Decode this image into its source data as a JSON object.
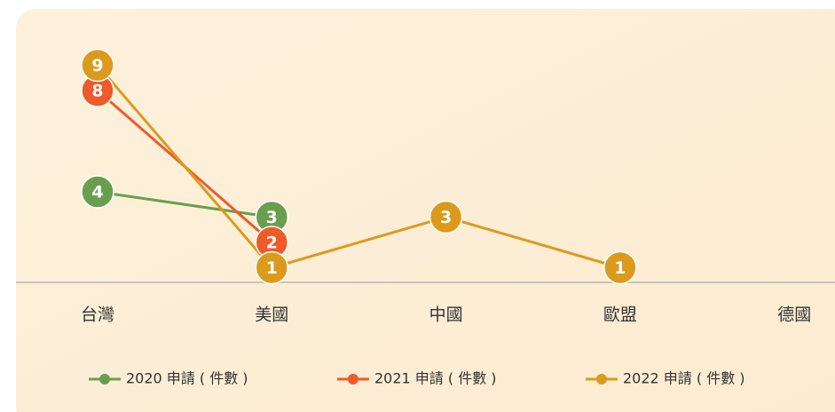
{
  "chart_data": {
    "type": "line",
    "categories": [
      "台灣",
      "美國",
      "中國",
      "歐盟",
      "德國"
    ],
    "series": [
      {
        "name": "2020 申請 ( 件數 )",
        "color": "#6a9e4f",
        "values": [
          4,
          3,
          null,
          null,
          null
        ]
      },
      {
        "name": "2021 申請 ( 件數 )",
        "color": "#ee5a2a",
        "values": [
          8,
          2,
          null,
          null,
          null
        ]
      },
      {
        "name": "2022 申請 ( 件數 )",
        "color": "#dc9a1c",
        "values": [
          9,
          1,
          3,
          1,
          null
        ]
      }
    ],
    "legend": "bottom"
  }
}
